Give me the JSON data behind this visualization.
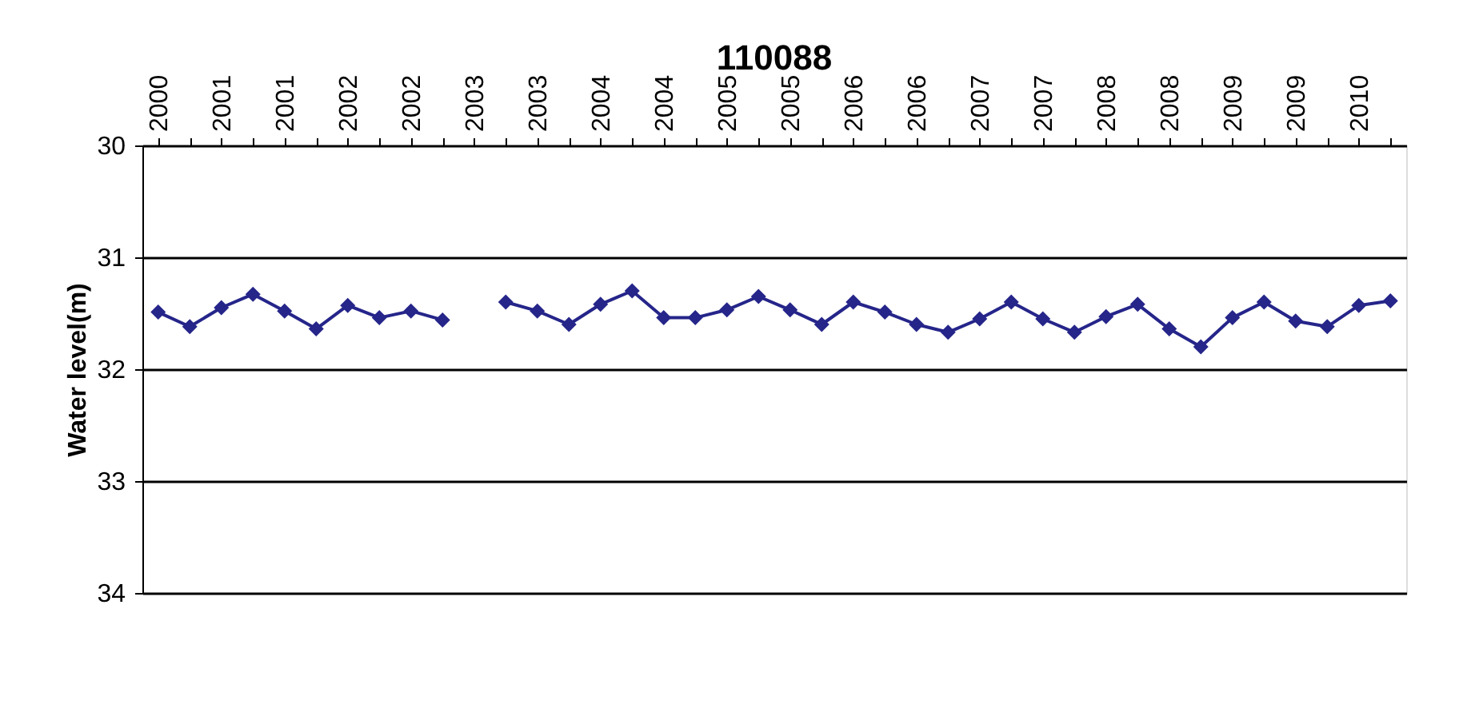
{
  "chart_data": {
    "type": "line",
    "title": "110088",
    "ylabel": "Water level(m)",
    "categories": [
      "2000",
      null,
      "2001",
      null,
      "2001",
      null,
      "2002",
      null,
      "2002",
      null,
      "2003",
      null,
      "2003",
      null,
      "2004",
      null,
      "2004",
      null,
      "2005",
      null,
      "2005",
      null,
      "2006",
      null,
      "2006",
      null,
      "2007",
      null,
      "2007",
      null,
      "2008",
      null,
      "2008",
      null,
      "2009",
      null,
      "2009",
      null,
      "2010",
      null
    ],
    "series": [
      {
        "color": "#25258a",
        "values": [
          31.49,
          31.62,
          31.45,
          31.33,
          31.48,
          31.64,
          31.43,
          31.54,
          31.48,
          31.56,
          null,
          31.4,
          31.48,
          31.6,
          31.42,
          31.3,
          31.54,
          31.54,
          31.47,
          31.35,
          31.47,
          31.6,
          31.4,
          31.49,
          31.6,
          31.67,
          31.55,
          31.4,
          31.55,
          31.67,
          31.53,
          31.42,
          31.64,
          31.8,
          31.54,
          31.4,
          31.57,
          31.62,
          31.43,
          31.39
        ]
      }
    ],
    "ylim": [
      34,
      30
    ],
    "yticks": [
      30,
      31,
      32,
      33,
      34
    ],
    "grid": "y",
    "marker": "diamond",
    "line_style": "solid"
  }
}
